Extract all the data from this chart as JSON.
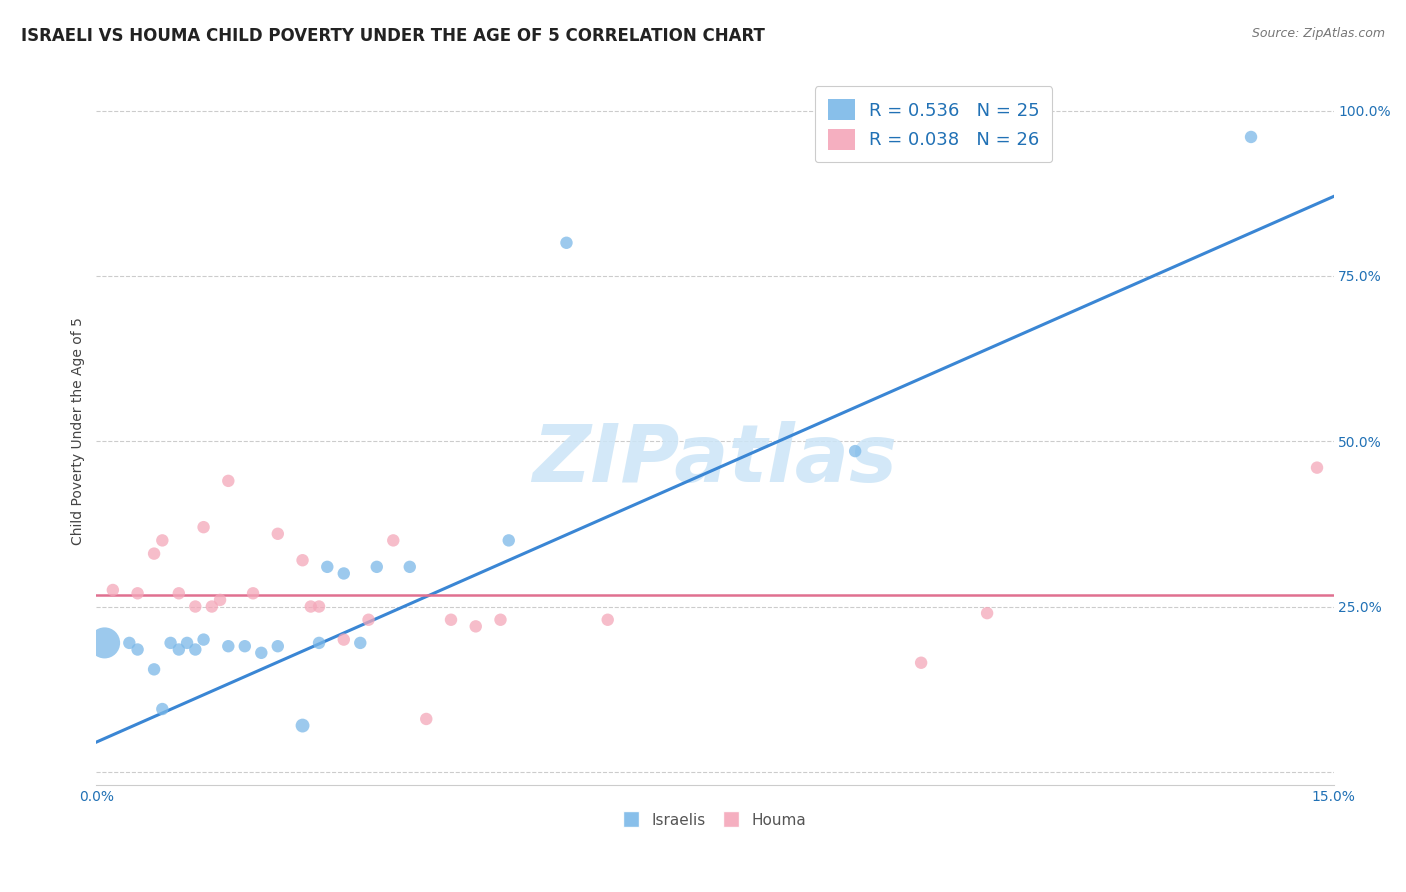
{
  "title": "ISRAELI VS HOUMA CHILD POVERTY UNDER THE AGE OF 5 CORRELATION CHART",
  "source": "Source: ZipAtlas.com",
  "ylabel": "Child Poverty Under the Age of 5",
  "xlim": [
    0.0,
    0.15
  ],
  "ylim": [
    -0.02,
    1.05
  ],
  "xticks": [
    0.0,
    0.03,
    0.06,
    0.09,
    0.12,
    0.15
  ],
  "xtick_labels": [
    "0.0%",
    "",
    "",
    "",
    "",
    "15.0%"
  ],
  "yticks": [
    0.0,
    0.25,
    0.5,
    0.75,
    1.0
  ],
  "ytick_labels": [
    "",
    "25.0%",
    "50.0%",
    "75.0%",
    "100.0%"
  ],
  "watermark": "ZIPatlas",
  "israeli_color": "#7bb8e8",
  "houma_color": "#f4a7b9",
  "legend_label1": "R = 0.536   N = 25",
  "legend_label2": "R = 0.038   N = 26",
  "legend_label_israelis": "Israelis",
  "legend_label_houma": "Houma",
  "israeli_scatter_x": [
    0.001,
    0.004,
    0.005,
    0.007,
    0.008,
    0.009,
    0.01,
    0.011,
    0.012,
    0.013,
    0.016,
    0.018,
    0.02,
    0.022,
    0.025,
    0.027,
    0.028,
    0.03,
    0.032,
    0.034,
    0.038,
    0.05,
    0.057,
    0.092,
    0.14
  ],
  "israeli_scatter_y": [
    0.195,
    0.195,
    0.185,
    0.155,
    0.095,
    0.195,
    0.185,
    0.195,
    0.185,
    0.2,
    0.19,
    0.19,
    0.18,
    0.19,
    0.07,
    0.195,
    0.31,
    0.3,
    0.195,
    0.31,
    0.31,
    0.35,
    0.8,
    0.485,
    0.96
  ],
  "israeli_scatter_sizes": [
    500,
    80,
    80,
    80,
    80,
    80,
    80,
    80,
    80,
    80,
    80,
    80,
    80,
    80,
    100,
    80,
    80,
    80,
    80,
    80,
    80,
    80,
    80,
    80,
    80
  ],
  "houma_scatter_x": [
    0.002,
    0.005,
    0.007,
    0.008,
    0.01,
    0.012,
    0.013,
    0.014,
    0.015,
    0.016,
    0.019,
    0.022,
    0.025,
    0.026,
    0.027,
    0.03,
    0.033,
    0.036,
    0.04,
    0.043,
    0.046,
    0.049,
    0.062,
    0.1,
    0.108,
    0.148
  ],
  "houma_scatter_y": [
    0.275,
    0.27,
    0.33,
    0.35,
    0.27,
    0.25,
    0.37,
    0.25,
    0.26,
    0.44,
    0.27,
    0.36,
    0.32,
    0.25,
    0.25,
    0.2,
    0.23,
    0.35,
    0.08,
    0.23,
    0.22,
    0.23,
    0.23,
    0.165,
    0.24,
    0.46
  ],
  "houma_scatter_sizes": [
    80,
    80,
    80,
    80,
    80,
    80,
    80,
    80,
    80,
    80,
    80,
    80,
    80,
    80,
    80,
    80,
    80,
    80,
    80,
    80,
    80,
    80,
    80,
    80,
    80,
    80
  ],
  "israeli_line_slope": 5.5,
  "israeli_line_intercept": 0.045,
  "houma_line_y": 0.268,
  "line_blue": "#3a86d4",
  "line_pink": "#e07090",
  "background_color": "#ffffff",
  "grid_color": "#cccccc",
  "title_fontsize": 12,
  "axis_label_fontsize": 10,
  "tick_fontsize": 10,
  "tick_color": "#2171b5",
  "legend_text_color": "#2171b5"
}
